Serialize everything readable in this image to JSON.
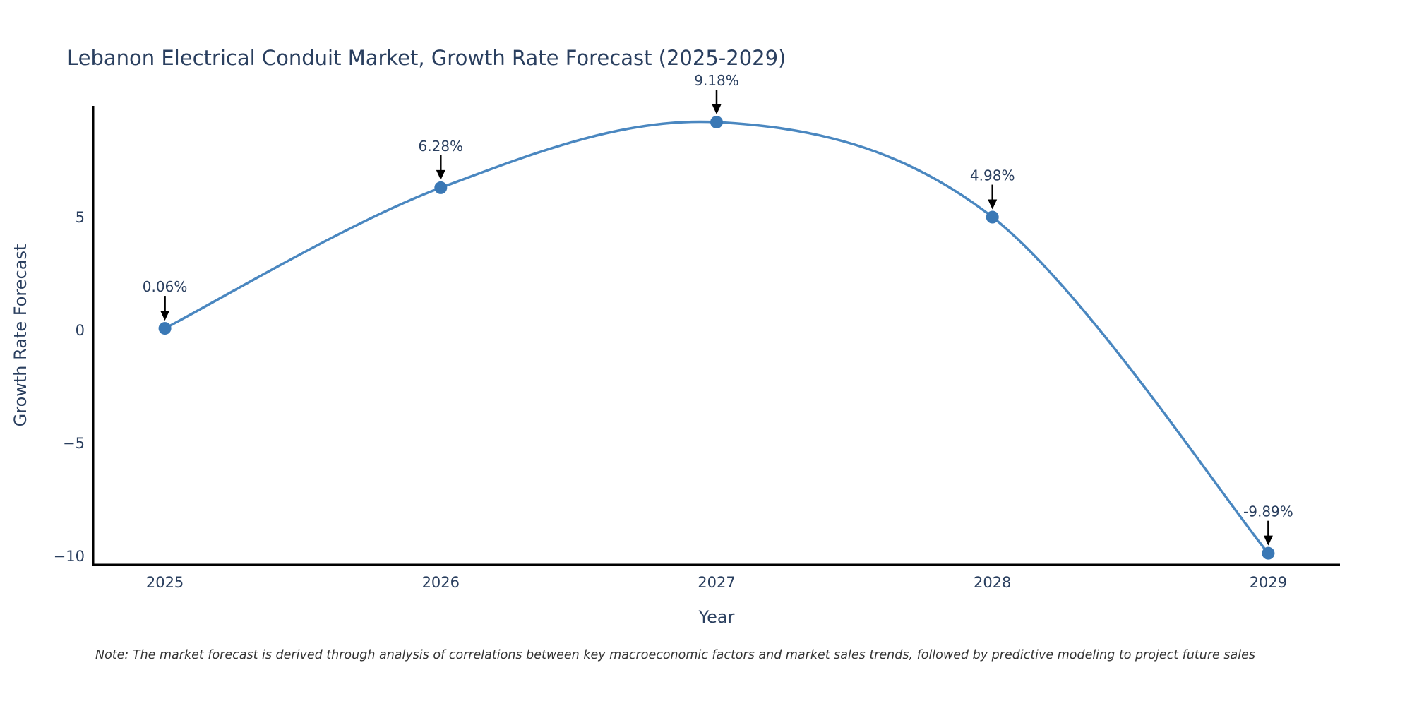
{
  "note": "Note: The market forecast is derived through analysis of correlations between key macroeconomic factors and market sales trends, followed by predictive modeling to project future sales",
  "chart_data": {
    "type": "line",
    "title": "Lebanon Electrical Conduit Market, Growth Rate Forecast (2025-2029)",
    "xlabel": "Year",
    "ylabel": "Growth Rate Forecast",
    "x": [
      2025,
      2026,
      2027,
      2028,
      2029
    ],
    "values": [
      0.06,
      6.28,
      9.18,
      4.98,
      -9.89
    ],
    "point_labels": [
      "0.06%",
      "6.28%",
      "9.18%",
      "4.98%",
      "-9.89%"
    ],
    "x_tick_labels": [
      "2025",
      "2026",
      "2027",
      "2028",
      "2029"
    ],
    "y_tick_values": [
      5,
      0,
      -5,
      -10
    ],
    "y_tick_labels": [
      "5",
      "0",
      "−5",
      "−10"
    ],
    "xlim": [
      2024.74,
      2029.26
    ],
    "ylim": [
      -10.4,
      9.9
    ],
    "grid": false,
    "legend": "none",
    "line_shape": "spline",
    "colors": {
      "line": "#4a87c0",
      "marker": "#3a78b5",
      "axis": "#000000",
      "tick_text": "#2a3f5f",
      "title_text": "#2a3f5f",
      "annotation_text": "#2a3f5f",
      "arrow": "#000000",
      "note_text": "#333333",
      "background": "#ffffff"
    }
  }
}
